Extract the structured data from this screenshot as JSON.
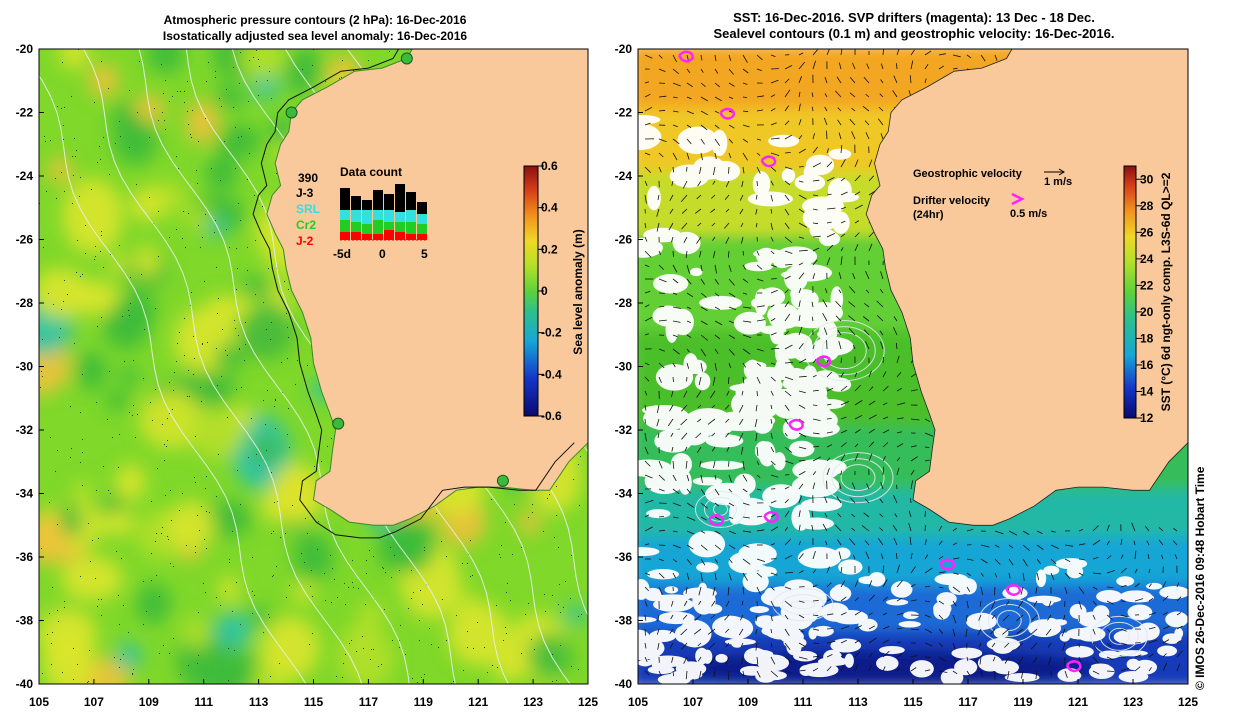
{
  "left_panel": {
    "title_line1": "Atmospheric pressure contours (2 hPa): 16-Dec-2016",
    "title_line2": "Isostatically adjusted sea level anomaly: 16-Dec-2016",
    "colorbar": {
      "label": "Sea level anomaly (m)",
      "ticks": [
        "0.6",
        "0.4",
        "0.2",
        "0",
        "-0.2",
        "-0.4",
        "-0.6"
      ],
      "range": [
        -0.6,
        0.6
      ]
    },
    "data_count": {
      "title": "Data count",
      "total": "390",
      "legend": [
        {
          "name": "J-3",
          "color": "#000000"
        },
        {
          "name": "SRL",
          "color": "#33e0e0"
        },
        {
          "name": "Cr2",
          "color": "#22cc22"
        },
        {
          "name": "J-2",
          "color": "#ff0000"
        }
      ],
      "x_ticks": [
        "-5d",
        "0",
        "5"
      ]
    }
  },
  "right_panel": {
    "title_line1": "SST: 16-Dec-2016. SVP drifters (magenta): 13 Dec - 18 Dec.",
    "title_line2": "Sealevel contours (0.1 m) and geostrophic velocity: 16-Dec-2016.",
    "colorbar": {
      "label": "SST (°C) 6d ngt-only comp. L3S-6d QL>=2",
      "ticks": [
        "30",
        "28",
        "26",
        "24",
        "22",
        "20",
        "18",
        "16",
        "14",
        "12"
      ],
      "range": [
        12,
        31
      ]
    },
    "legend": {
      "geo_label": "Geostrophic velocity",
      "geo_scale": "1 m/s",
      "drifter_label_line1": "Drifter velocity",
      "drifter_label_line2": "(24hr)",
      "drifter_scale": "0.5 m/s"
    },
    "credit": "© IMOS 26-Dec-2016 09:48 Hobart Time"
  },
  "axes": {
    "x_ticks": [
      "105",
      "107",
      "109",
      "111",
      "113",
      "115",
      "117",
      "119",
      "121",
      "123",
      "125"
    ],
    "y_ticks": [
      "-20",
      "-22",
      "-24",
      "-26",
      "-28",
      "-30",
      "-32",
      "-34",
      "-36",
      "-38",
      "-40"
    ],
    "lon_range": [
      105,
      125
    ],
    "lat_range": [
      -40,
      -20
    ]
  },
  "colors": {
    "land": "#f9c89b",
    "sla_green": "#7fd82a",
    "sla_dark": "#3cba3c",
    "sla_yellow": "#dce62b",
    "sla_cyan": "#2fc2a8",
    "sst_white": "#ffffff",
    "sst_blue": "#1a5ad0",
    "sst_green": "#4bbf2a",
    "sst_orange": "#f3a623",
    "drifter": "#ff22ff"
  }
}
